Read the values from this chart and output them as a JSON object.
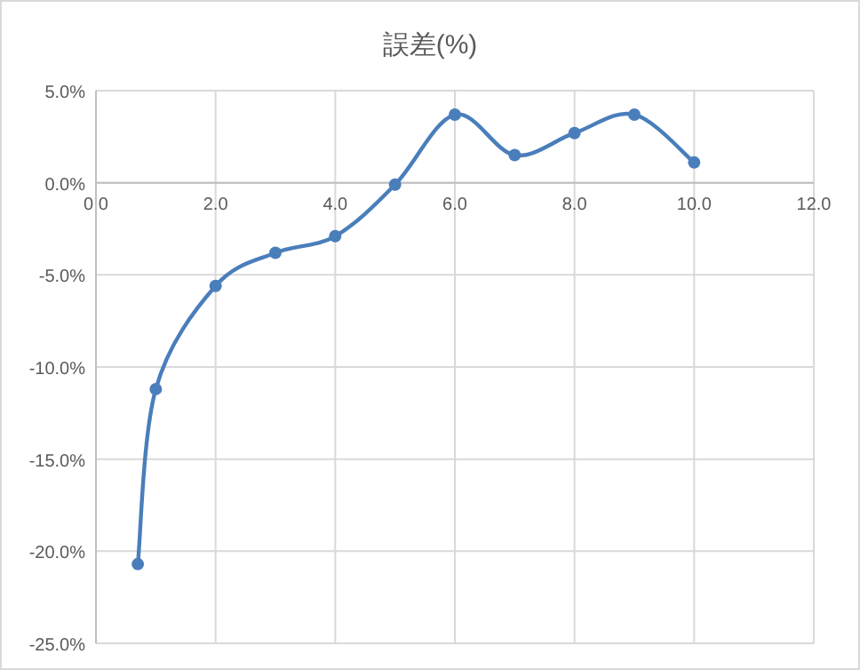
{
  "chart_data": {
    "type": "line",
    "title": "誤差(%)",
    "x": [
      0.7,
      1,
      2,
      3,
      4,
      5,
      6,
      7,
      8,
      9,
      10
    ],
    "series": [
      {
        "color": "#4a7ebb",
        "values": [
          -20.7,
          -11.2,
          -5.6,
          -3.8,
          -2.9,
          -0.1,
          3.7,
          1.5,
          2.7,
          3.7,
          1.1
        ]
      }
    ],
    "xlim": [
      0,
      12
    ],
    "ylim": [
      -25,
      5
    ],
    "xticks": [
      {
        "value": 0,
        "label": "0.0"
      },
      {
        "value": 2,
        "label": "2.0"
      },
      {
        "value": 4,
        "label": "4.0"
      },
      {
        "value": 6,
        "label": "6.0"
      },
      {
        "value": 8,
        "label": "8.0"
      },
      {
        "value": 10,
        "label": "10.0"
      },
      {
        "value": 12,
        "label": "12.0"
      }
    ],
    "yticks": [
      {
        "value": 5,
        "label": "5.0%"
      },
      {
        "value": 0,
        "label": "0.0%"
      },
      {
        "value": -5,
        "label": "-5.0%"
      },
      {
        "value": -10,
        "label": "-10.0%"
      },
      {
        "value": -15,
        "label": "-15.0%"
      },
      {
        "value": -20,
        "label": "-20.0%"
      },
      {
        "value": -25,
        "label": "-25.0%"
      }
    ],
    "grid": true,
    "marker": "circle",
    "line_style": "solid"
  }
}
